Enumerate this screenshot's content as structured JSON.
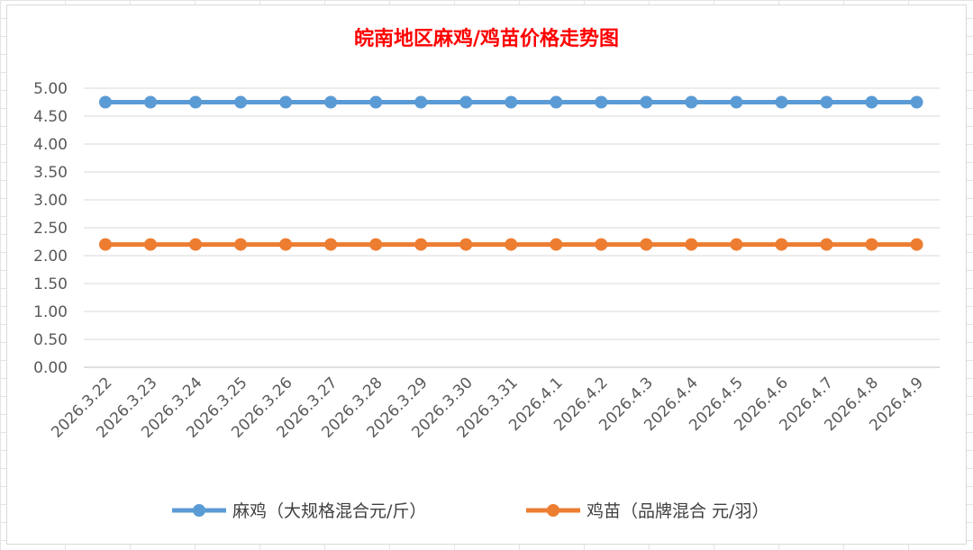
{
  "chart_data": {
    "type": "line",
    "title": "皖南地区麻鸡/鸡苗价格走势图",
    "categories": [
      "2026.3.22",
      "2026.3.23",
      "2026.3.24",
      "2026.3.25",
      "2026.3.26",
      "2026.3.27",
      "2026.3.28",
      "2026.3.29",
      "2026.3.30",
      "2026.3.31",
      "2026.4.1",
      "2026.4.2",
      "2026.4.3",
      "2026.4.4",
      "2026.4.5",
      "2026.4.6",
      "2026.4.7",
      "2026.4.8",
      "2026.4.9"
    ],
    "series": [
      {
        "name": "麻鸡（大规格混合元/斤）",
        "color": "#5b9bd5",
        "values": [
          4.75,
          4.75,
          4.75,
          4.75,
          4.75,
          4.75,
          4.75,
          4.75,
          4.75,
          4.75,
          4.75,
          4.75,
          4.75,
          4.75,
          4.75,
          4.75,
          4.75,
          4.75,
          4.75
        ]
      },
      {
        "name": "鸡苗（品牌混合 元/羽）",
        "color": "#ed7d31",
        "values": [
          2.2,
          2.2,
          2.2,
          2.2,
          2.2,
          2.2,
          2.2,
          2.2,
          2.2,
          2.2,
          2.2,
          2.2,
          2.2,
          2.2,
          2.2,
          2.2,
          2.2,
          2.2,
          2.2
        ]
      }
    ],
    "yticks": [
      "0.00",
      "0.50",
      "1.00",
      "1.50",
      "2.00",
      "2.50",
      "3.00",
      "3.50",
      "4.00",
      "4.50",
      "5.00"
    ],
    "ylim": [
      0,
      5
    ],
    "grid": true,
    "legend_position": "bottom"
  }
}
